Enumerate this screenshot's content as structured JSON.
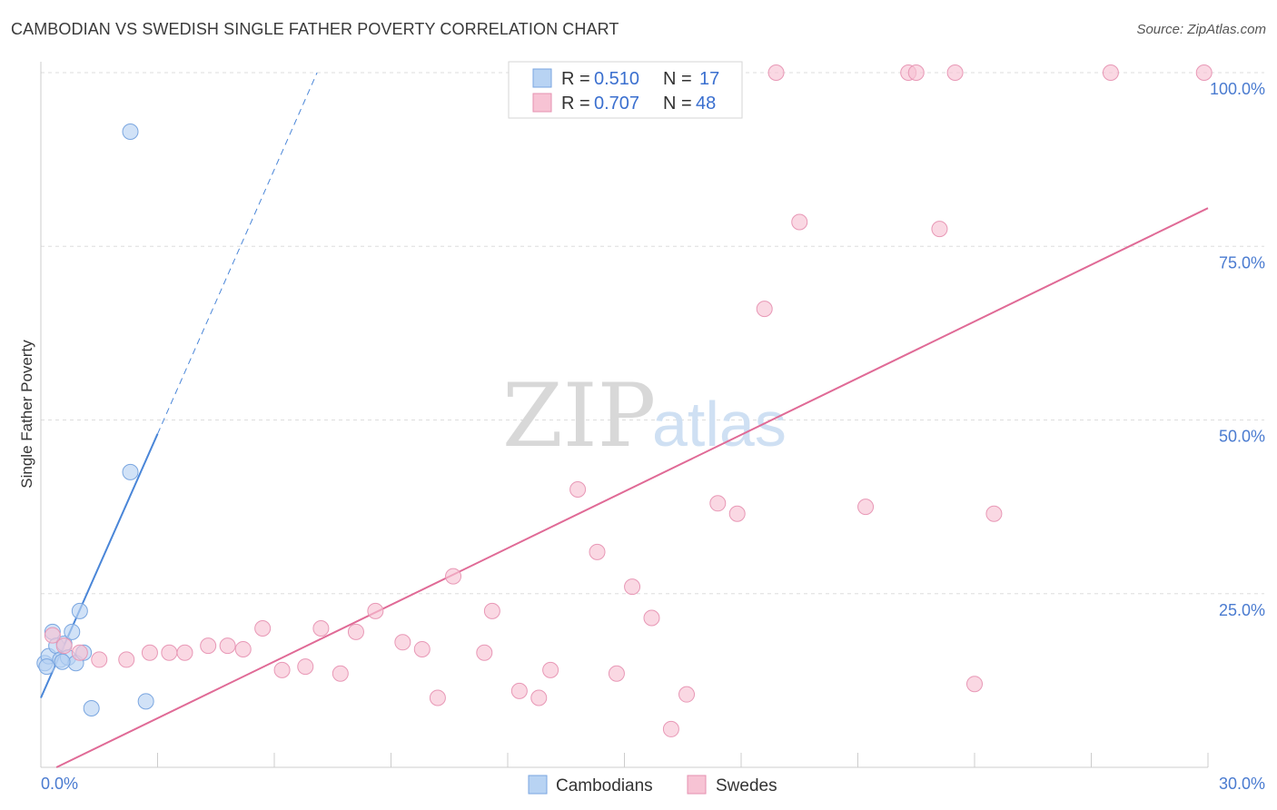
{
  "header": {
    "title": "CAMBODIAN VS SWEDISH SINGLE FATHER POVERTY CORRELATION CHART",
    "source": "Source: ZipAtlas.com"
  },
  "watermark": {
    "zip": "ZIP",
    "atlas": "atlas"
  },
  "colors": {
    "blue": "#4a86d8",
    "blue_fill": "#b8d3f3",
    "pink": "#e06a96",
    "pink_fill": "#f7c3d4",
    "grid": "#dddddd",
    "tick_label": "#4a7bd0"
  },
  "legend": {
    "cambodians": {
      "r_label": "R =",
      "r_value": "0.510",
      "n_label": "N =",
      "n_value": "17"
    },
    "swedes": {
      "r_label": "R =",
      "r_value": "0.707",
      "n_label": "N =",
      "n_value": "48"
    }
  },
  "bottom_legend": [
    "Cambodians",
    "Swedes"
  ],
  "chart_data": {
    "type": "scatter",
    "title": "CAMBODIAN VS SWEDISH SINGLE FATHER POVERTY CORRELATION CHART",
    "xlabel": "",
    "ylabel": "Single Father Poverty",
    "xlim": [
      0,
      30
    ],
    "ylim": [
      0,
      100
    ],
    "x_tick_labels": [
      "0.0%",
      "30.0%"
    ],
    "y_tick_labels": [
      "100.0%",
      "75.0%",
      "50.0%",
      "25.0%"
    ],
    "y_ticks": [
      100,
      75,
      50,
      25
    ],
    "series": [
      {
        "name": "Cambodians",
        "color": "#4a86d8",
        "points": [
          [
            0.1,
            15.0
          ],
          [
            0.2,
            16.0
          ],
          [
            0.3,
            19.5
          ],
          [
            0.4,
            17.5
          ],
          [
            0.5,
            15.5
          ],
          [
            0.6,
            17.8
          ],
          [
            0.7,
            15.8
          ],
          [
            0.8,
            19.5
          ],
          [
            0.9,
            15.0
          ],
          [
            1.0,
            22.5
          ],
          [
            1.1,
            16.5
          ],
          [
            1.3,
            8.5
          ],
          [
            2.3,
            91.5
          ],
          [
            2.3,
            42.5
          ],
          [
            2.7,
            9.5
          ],
          [
            0.15,
            14.5
          ],
          [
            0.55,
            15.2
          ]
        ],
        "trend": {
          "x0": 0.0,
          "y0": 10.0,
          "x1": 3.0,
          "y1": 48.0,
          "dash_to": {
            "x": 7.1,
            "y": 100.0
          }
        }
      },
      {
        "name": "Swedes",
        "color": "#e06a96",
        "points": [
          [
            0.3,
            19.0
          ],
          [
            0.6,
            17.5
          ],
          [
            1.0,
            16.5
          ],
          [
            1.5,
            15.5
          ],
          [
            2.2,
            15.5
          ],
          [
            2.8,
            16.5
          ],
          [
            3.3,
            16.5
          ],
          [
            3.7,
            16.5
          ],
          [
            4.3,
            17.5
          ],
          [
            4.8,
            17.5
          ],
          [
            5.2,
            17.0
          ],
          [
            5.7,
            20.0
          ],
          [
            6.2,
            14.0
          ],
          [
            6.8,
            14.5
          ],
          [
            7.2,
            20.0
          ],
          [
            7.7,
            13.5
          ],
          [
            8.1,
            19.5
          ],
          [
            8.6,
            22.5
          ],
          [
            9.3,
            18.0
          ],
          [
            9.8,
            17.0
          ],
          [
            10.2,
            10.0
          ],
          [
            10.6,
            27.5
          ],
          [
            11.4,
            16.5
          ],
          [
            11.6,
            22.5
          ],
          [
            12.3,
            11.0
          ],
          [
            12.8,
            10.0
          ],
          [
            13.1,
            14.0
          ],
          [
            13.8,
            40.0
          ],
          [
            14.3,
            31.0
          ],
          [
            14.8,
            13.5
          ],
          [
            15.2,
            26.0
          ],
          [
            15.7,
            21.5
          ],
          [
            16.2,
            5.5
          ],
          [
            16.6,
            10.5
          ],
          [
            17.4,
            38.0
          ],
          [
            17.9,
            36.5
          ],
          [
            18.6,
            66.0
          ],
          [
            18.9,
            100.0
          ],
          [
            19.5,
            78.5
          ],
          [
            21.2,
            37.5
          ],
          [
            22.3,
            100.0
          ],
          [
            22.5,
            100.0
          ],
          [
            23.1,
            77.5
          ],
          [
            23.5,
            100.0
          ],
          [
            24.0,
            12.0
          ],
          [
            24.5,
            36.5
          ],
          [
            27.5,
            100.0
          ],
          [
            29.9,
            100.0
          ]
        ],
        "trend": {
          "x0": 0.4,
          "y0": 0.0,
          "x1": 30.0,
          "y1": 80.5
        }
      }
    ]
  }
}
